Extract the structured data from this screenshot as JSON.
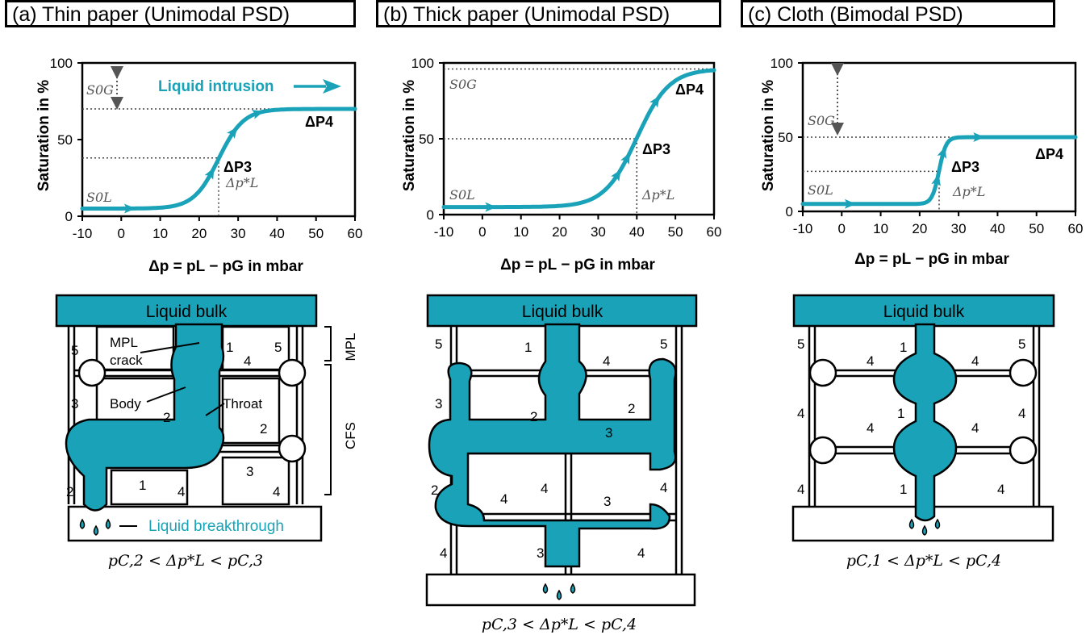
{
  "panels": [
    {
      "title": "(a) Thin paper (Unimodal PSD)",
      "chart_data": {
        "type": "line",
        "xlabel": "Δp = pL − pG in mbar",
        "ylabel": "Saturation in %",
        "xlim": [
          -10,
          60
        ],
        "ylim": [
          0,
          100
        ],
        "xticks": [
          "-10",
          "0",
          "10",
          "20",
          "30",
          "40",
          "50",
          "60"
        ],
        "yticks": [
          "0",
          "50",
          "100"
        ],
        "curve": {
          "base": 5,
          "top": 70,
          "mid": 25,
          "width": 3.2
        },
        "threshold_saturation": 38,
        "dp_star": 25,
        "labels": {
          "p3": "ΔP3",
          "p4": "ΔP4",
          "dp": "Δp*L",
          "sg": "S0G",
          "sl": "S0L",
          "intrusion": "Liquid intrusion"
        }
      },
      "diagram": {
        "bulk_label": "Liquid bulk",
        "breakthrough_label": "Liquid breakthrough",
        "mpl_crack": "MPL crack",
        "body": "Body",
        "throat": "Throat",
        "mpl": "MPL",
        "cfs": "CFS",
        "numbers": [
          "5",
          "1",
          "5",
          "4",
          "3",
          "2",
          "2",
          "3",
          "2",
          "1",
          "4",
          "4"
        ],
        "inequality": "pC,2 < Δp*L < pC,3"
      }
    },
    {
      "title": "(b) Thick paper (Unimodal PSD)",
      "chart_data": {
        "type": "line",
        "xlabel": "Δp = pL − pG in mbar",
        "ylabel": "Saturation in %",
        "xlim": [
          -10,
          60
        ],
        "ylim": [
          0,
          100
        ],
        "xticks": [
          "-10",
          "0",
          "10",
          "20",
          "30",
          "40",
          "50",
          "60"
        ],
        "yticks": [
          "0",
          "50",
          "100"
        ],
        "curve": {
          "base": 5,
          "top": 96,
          "mid": 40,
          "width": 4.2
        },
        "threshold_saturation": 50,
        "dp_star": 40,
        "labels": {
          "p3": "ΔP3",
          "p4": "ΔP4",
          "dp": "Δp*L",
          "sg": "S0G",
          "sl": "S0L"
        }
      },
      "diagram": {
        "bulk_label": "Liquid bulk",
        "numbers": [
          "5",
          "1",
          "4",
          "5",
          "3",
          "2",
          "2",
          "3",
          "2",
          "4",
          "3",
          "4",
          "4",
          "3",
          "4"
        ],
        "inequality": "pC,3 < Δp*L < pC,4"
      }
    },
    {
      "title": "(c) Cloth (Bimodal PSD)",
      "chart_data": {
        "type": "line",
        "xlabel": "Δp = pL − pG in mbar",
        "ylabel": "Saturation in %",
        "xlim": [
          -10,
          60
        ],
        "ylim": [
          0,
          100
        ],
        "xticks": [
          "-10",
          "0",
          "10",
          "20",
          "30",
          "40",
          "50",
          "60"
        ],
        "yticks": [
          "0",
          "50",
          "100"
        ],
        "curve": {
          "base": 5,
          "top": 50,
          "mid": 25,
          "width": 0.9
        },
        "threshold_saturation": 27,
        "dp_star": 25,
        "labels": {
          "p3": "ΔP3",
          "p4": "ΔP4",
          "dp": "Δp*L",
          "sg": "S0G",
          "sl": "S0L"
        }
      },
      "diagram": {
        "bulk_label": "Liquid bulk",
        "numbers": [
          "5",
          "4",
          "1",
          "4",
          "5",
          "4",
          "4",
          "1",
          "4",
          "4",
          "4",
          "1",
          "4"
        ],
        "inequality": "pC,1 < Δp*L < pC,4"
      }
    }
  ],
  "colors": {
    "liquid": "#1aa3b8",
    "frame": "#000000",
    "dotted": "#444444"
  }
}
